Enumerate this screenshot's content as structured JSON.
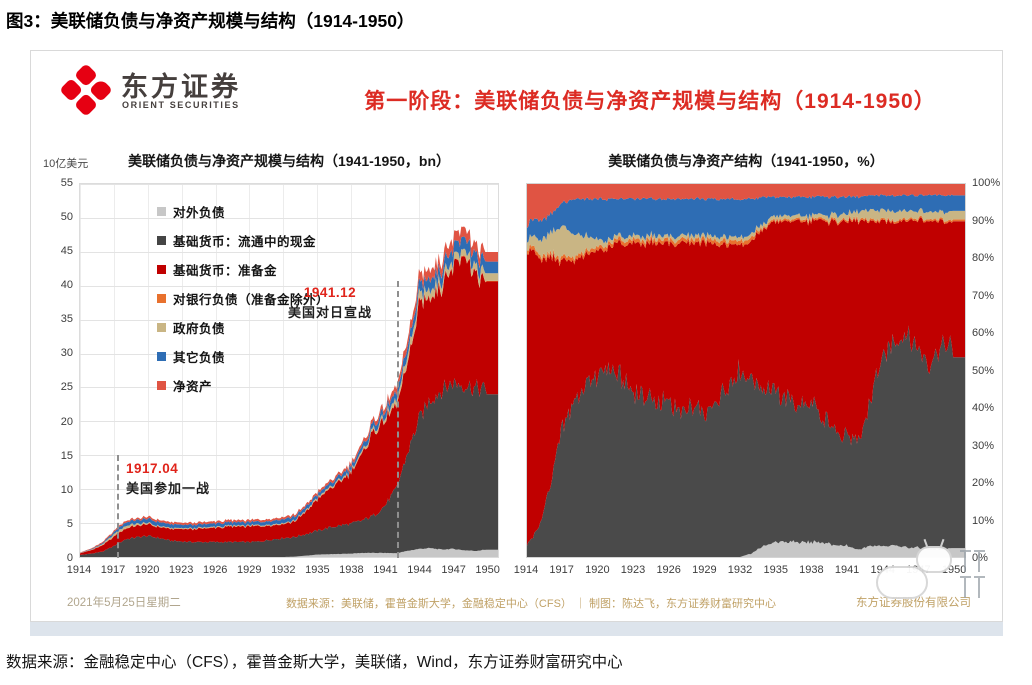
{
  "page": {
    "title": "图3：美联储负债与净资产规模与结构（1914-1950）",
    "caption": "数据来源：金融稳定中心（CFS），霍普金斯大学，美联储，Wind，东方证券财富研究中心"
  },
  "slide": {
    "logo": {
      "cn": "东方证券",
      "en": "ORIENT SECURITIES",
      "brand_color": "#e60012"
    },
    "heading": {
      "text": "第一阶段：美联储负债与净资产规模与结构（1914-1950）",
      "color": "#dc2b23"
    },
    "footer": {
      "date": "2021年5月25日星期二",
      "source": "数据来源：美联储，霍普金斯大学，金融稳定中心（CFS） ｜ 制图：陈达飞，东方证券财富研究中心",
      "company": "东方证券股份有限公司"
    }
  },
  "chart_data": [
    {
      "id": "fed-liabilities-level",
      "type": "area",
      "stacked": true,
      "percent": false,
      "title": "美联储负债与净资产规模与结构（1941-1950，bn）",
      "unit_label": "10亿美元",
      "ylim": [
        0,
        55
      ],
      "yticks": [
        0,
        5,
        10,
        15,
        20,
        25,
        30,
        35,
        40,
        45,
        50,
        55
      ],
      "xticks": [
        1914,
        1917,
        1920,
        1923,
        1926,
        1929,
        1932,
        1935,
        1938,
        1941,
        1944,
        1947,
        1950
      ],
      "x": [
        1914,
        1915,
        1916,
        1917,
        1918,
        1919,
        1920,
        1921,
        1922,
        1923,
        1924,
        1925,
        1926,
        1927,
        1928,
        1929,
        1930,
        1931,
        1932,
        1933,
        1934,
        1935,
        1936,
        1937,
        1938,
        1939,
        1940,
        1941,
        1942,
        1943,
        1944,
        1945,
        1946,
        1947,
        1948,
        1949,
        1950
      ],
      "series": [
        {
          "name": "对外负债",
          "color": "#c7c7c7",
          "values": [
            0,
            0,
            0,
            0,
            0,
            0,
            0,
            0,
            0,
            0,
            0,
            0,
            0,
            0,
            0,
            0,
            0,
            0,
            0,
            0.05,
            0.2,
            0.35,
            0.4,
            0.45,
            0.5,
            0.6,
            0.6,
            0.6,
            0.55,
            0.9,
            1.2,
            1.3,
            1.1,
            1.2,
            1.0,
            0.9,
            1.1
          ]
        },
        {
          "name": "基础货币：流通中的现金",
          "color": "#454545",
          "values": [
            0.3,
            0.5,
            0.8,
            1.6,
            2.6,
            2.9,
            3.1,
            2.8,
            2.4,
            2.3,
            2.2,
            2.2,
            2.2,
            2.2,
            2.2,
            2.2,
            2.3,
            2.6,
            2.8,
            2.9,
            3.2,
            3.5,
            3.9,
            4.2,
            4.4,
            4.8,
            5.5,
            7.0,
            9.5,
            14.5,
            19.0,
            22.0,
            23.5,
            24.5,
            24.5,
            24.0,
            23.5
          ]
        },
        {
          "name": "基础货币：准备金",
          "color": "#c00000",
          "values": [
            0.25,
            0.5,
            0.9,
            1.4,
            1.6,
            1.7,
            1.7,
            1.6,
            1.7,
            1.8,
            1.9,
            2.0,
            2.1,
            2.2,
            2.3,
            2.3,
            2.3,
            2.1,
            2.1,
            2.3,
            3.3,
            4.6,
            5.6,
            6.4,
            7.6,
            9.7,
            12.5,
            12.6,
            12.0,
            13.0,
            16.5,
            15.5,
            15.5,
            17.5,
            19.0,
            16.5,
            16.0
          ]
        },
        {
          "name": "对银行负债（准备金除外）",
          "color": "#e8712e",
          "values": [
            0.02,
            0.03,
            0.04,
            0.05,
            0.05,
            0.05,
            0.05,
            0.05,
            0.05,
            0.05,
            0.05,
            0.05,
            0.05,
            0.05,
            0.05,
            0.05,
            0.05,
            0.05,
            0.05,
            0.05,
            0.05,
            0.05,
            0.05,
            0.05,
            0.05,
            0.05,
            0.05,
            0.05,
            0.1,
            0.1,
            0.1,
            0.1,
            0.1,
            0.1,
            0.1,
            0.1,
            0.1
          ]
        },
        {
          "name": "政府负债",
          "color": "#c9b584",
          "values": [
            0.02,
            0.05,
            0.15,
            0.3,
            0.35,
            0.25,
            0.15,
            0.1,
            0.1,
            0.1,
            0.1,
            0.1,
            0.1,
            0.1,
            0.1,
            0.1,
            0.1,
            0.1,
            0.1,
            0.1,
            0.15,
            0.2,
            0.2,
            0.2,
            0.25,
            0.3,
            0.4,
            0.5,
            0.7,
            1.0,
            1.2,
            1.2,
            1.0,
            1.0,
            1.0,
            1.0,
            1.2
          ]
        },
        {
          "name": "其它负债",
          "color": "#2e6db4",
          "values": [
            0.03,
            0.08,
            0.15,
            0.3,
            0.5,
            0.55,
            0.6,
            0.6,
            0.55,
            0.5,
            0.5,
            0.5,
            0.5,
            0.5,
            0.5,
            0.5,
            0.5,
            0.55,
            0.6,
            0.55,
            0.55,
            0.5,
            0.55,
            0.6,
            0.65,
            0.7,
            0.8,
            0.9,
            1.1,
            1.3,
            1.5,
            1.6,
            1.6,
            1.7,
            1.8,
            1.8,
            1.8
          ]
        },
        {
          "name": "净资产",
          "color": "#e05443",
          "values": [
            0.05,
            0.1,
            0.15,
            0.2,
            0.25,
            0.25,
            0.3,
            0.3,
            0.3,
            0.3,
            0.3,
            0.3,
            0.3,
            0.3,
            0.3,
            0.3,
            0.3,
            0.3,
            0.3,
            0.3,
            0.3,
            0.35,
            0.35,
            0.4,
            0.45,
            0.5,
            0.6,
            0.7,
            0.9,
            1.1,
            1.3,
            1.4,
            1.4,
            1.5,
            1.5,
            1.4,
            1.4
          ]
        }
      ],
      "annotations": [
        {
          "title": "1917.04",
          "text": "美国参加一战",
          "year": 1917.3
        },
        {
          "title": "1941.12",
          "text": "美国对日宣战",
          "year": 1942.0
        }
      ]
    },
    {
      "id": "fed-liabilities-share",
      "type": "area",
      "stacked": true,
      "percent": true,
      "title": "美联储负债与净资产结构（1941-1950，%）",
      "yticks_labels": [
        "100%",
        "90%",
        "80%",
        "70%",
        "60%",
        "50%",
        "40%",
        "30%",
        "20%",
        "10%",
        "0%"
      ],
      "xticks": [
        1914,
        1917,
        1920,
        1923,
        1926,
        1929,
        1932,
        1935,
        1938,
        1941,
        1944,
        1947,
        1950
      ],
      "x": [
        1914,
        1915,
        1916,
        1917,
        1918,
        1919,
        1920,
        1921,
        1922,
        1923,
        1924,
        1925,
        1926,
        1927,
        1928,
        1929,
        1930,
        1931,
        1932,
        1933,
        1934,
        1935,
        1936,
        1937,
        1938,
        1939,
        1940,
        1941,
        1942,
        1943,
        1944,
        1945,
        1946,
        1947,
        1948,
        1949,
        1950
      ],
      "series": [
        {
          "name": "对外负债",
          "color": "#c7c7c7",
          "values": [
            0,
            0,
            0,
            0,
            0,
            0,
            0,
            0,
            0,
            0,
            0,
            0,
            0,
            0,
            0,
            0,
            0,
            0,
            0,
            1,
            3,
            4,
            4,
            4,
            4,
            4,
            3,
            3,
            2,
            3,
            3,
            3,
            2.5,
            2.5,
            2,
            2,
            2.5
          ]
        },
        {
          "name": "基础货币：流通中的现金",
          "color": "#4a4a4a",
          "values": [
            3,
            8,
            20,
            35,
            42,
            46,
            49,
            51,
            48,
            45,
            43,
            42,
            41,
            40,
            39,
            38,
            41,
            46,
            50,
            47,
            43,
            40,
            39,
            37,
            36,
            33,
            31,
            30,
            28,
            40,
            50,
            55,
            57,
            53,
            51,
            55,
            53
          ]
        },
        {
          "name": "基础货币：准备金",
          "color": "#c00000",
          "values": [
            80,
            72,
            60,
            45,
            38,
            35,
            33,
            32,
            36,
            39,
            41,
            42,
            43,
            44,
            45,
            46,
            43,
            38,
            34,
            37,
            42,
            46,
            47,
            49,
            50,
            53,
            56,
            57,
            60,
            47,
            37,
            32,
            31,
            35,
            37,
            33,
            34
          ]
        },
        {
          "name": "对银行负债（准备金除外）",
          "color": "#e8712e",
          "values": [
            1,
            1,
            1,
            1,
            1,
            1,
            1,
            1,
            1,
            1,
            1,
            1,
            1,
            1,
            1,
            1,
            1,
            1,
            1,
            1,
            0.5,
            0.5,
            0.5,
            0.5,
            0.5,
            0.5,
            0.5,
            0.5,
            0.5,
            0.5,
            0.5,
            0.5,
            0.5,
            0.5,
            0.5,
            0.5,
            0.5
          ]
        },
        {
          "name": "政府负债",
          "color": "#c9b584",
          "values": [
            2,
            4,
            6,
            8,
            6,
            4,
            2,
            1,
            1,
            1,
            1,
            1,
            1,
            1,
            1,
            1,
            1,
            1,
            1,
            1,
            1,
            1,
            1,
            1,
            1,
            1,
            1.5,
            1.5,
            2,
            2.5,
            2.5,
            2.5,
            2,
            2,
            2,
            2,
            2.5
          ]
        },
        {
          "name": "其它负债",
          "color": "#2e6db4",
          "values": [
            4,
            5,
            5,
            6,
            9,
            10,
            11,
            11,
            10,
            10,
            10,
            10,
            10,
            10,
            10,
            10,
            10,
            10,
            10,
            9,
            7,
            5,
            5,
            5,
            5,
            5,
            4.5,
            4.5,
            4,
            4,
            4,
            4,
            4,
            4,
            4.5,
            4.5,
            4.5
          ]
        },
        {
          "name": "净资产",
          "color": "#e05443",
          "values": [
            10,
            10,
            8,
            5,
            4,
            4,
            4,
            4,
            4,
            4,
            4,
            4,
            4,
            4,
            4,
            4,
            4,
            4,
            4,
            4,
            3.5,
            3.5,
            3.5,
            3.5,
            3.5,
            3.5,
            3.5,
            3.5,
            3.5,
            3,
            3,
            3,
            3,
            3,
            3,
            3,
            3
          ]
        }
      ]
    }
  ]
}
